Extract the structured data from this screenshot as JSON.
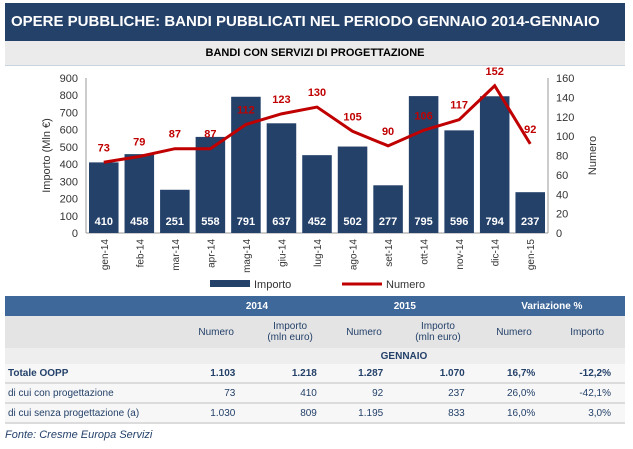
{
  "title": "OPERE PUBBLICHE: BANDI PUBBLICATI NEL PERIODO GENNAIO 2014-GENNAIO 2015",
  "subtitle": "BANDI CON SERVIZI DI PROGETTAZIONE",
  "chart_data": {
    "type": "bar+line",
    "categories": [
      "gen-14",
      "feb-14",
      "mar-14",
      "apr-14",
      "mag-14",
      "giu-14",
      "lug-14",
      "ago-14",
      "set-14",
      "ott-14",
      "nov-14",
      "dic-14",
      "gen-15"
    ],
    "series": [
      {
        "name": "Importo",
        "type": "bar",
        "axis": "left",
        "color": "#24416a",
        "values": [
          410,
          458,
          251,
          558,
          791,
          637,
          452,
          502,
          277,
          795,
          596,
          794,
          237
        ]
      },
      {
        "name": "Numero",
        "type": "line",
        "axis": "right",
        "color": "#c00000",
        "values": [
          73,
          79,
          87,
          87,
          112,
          123,
          130,
          105,
          90,
          106,
          117,
          152,
          92
        ]
      }
    ],
    "ylabel": "Importo (Mln €)",
    "y2label": "Numero",
    "ylim": [
      0,
      900
    ],
    "y2lim": [
      0,
      160
    ],
    "yticks": [
      "0",
      "100",
      "200",
      "300",
      "400",
      "500",
      "600",
      "700",
      "800",
      "900"
    ],
    "y2ticks": [
      "0",
      "20",
      "40",
      "60",
      "80",
      "100",
      "120",
      "140",
      "160"
    ],
    "legend": "bottom"
  },
  "table": {
    "group_headers": [
      "2014",
      "2015",
      "Variazione %"
    ],
    "col_headers": [
      "Numero",
      "Importo\n(mln euro)",
      "Numero",
      "Importo\n(mln euro)",
      "Numero",
      "Importo"
    ],
    "col_headers_l1": [
      "Numero",
      "Importo",
      "Numero",
      "Importo",
      "Numero",
      "Importo"
    ],
    "col_headers_l2": [
      "",
      "(mln euro)",
      "",
      "(mln euro)",
      "",
      ""
    ],
    "section": "GENNAIO",
    "rows": [
      {
        "label": "Totale OOPP",
        "values": [
          "1.103",
          "1.218",
          "1.287",
          "1.070",
          "16,7%",
          "-12,2%"
        ]
      },
      {
        "label": "di cui con progettazione",
        "values": [
          "73",
          "410",
          "92",
          "237",
          "26,0%",
          "-42,1%"
        ]
      },
      {
        "label": "di cui senza progettazione (a)",
        "values": [
          "1.030",
          "809",
          "1.195",
          "833",
          "16,0%",
          "3,0%"
        ]
      }
    ]
  },
  "source": "Fonte: Cresme Europa Servizi"
}
